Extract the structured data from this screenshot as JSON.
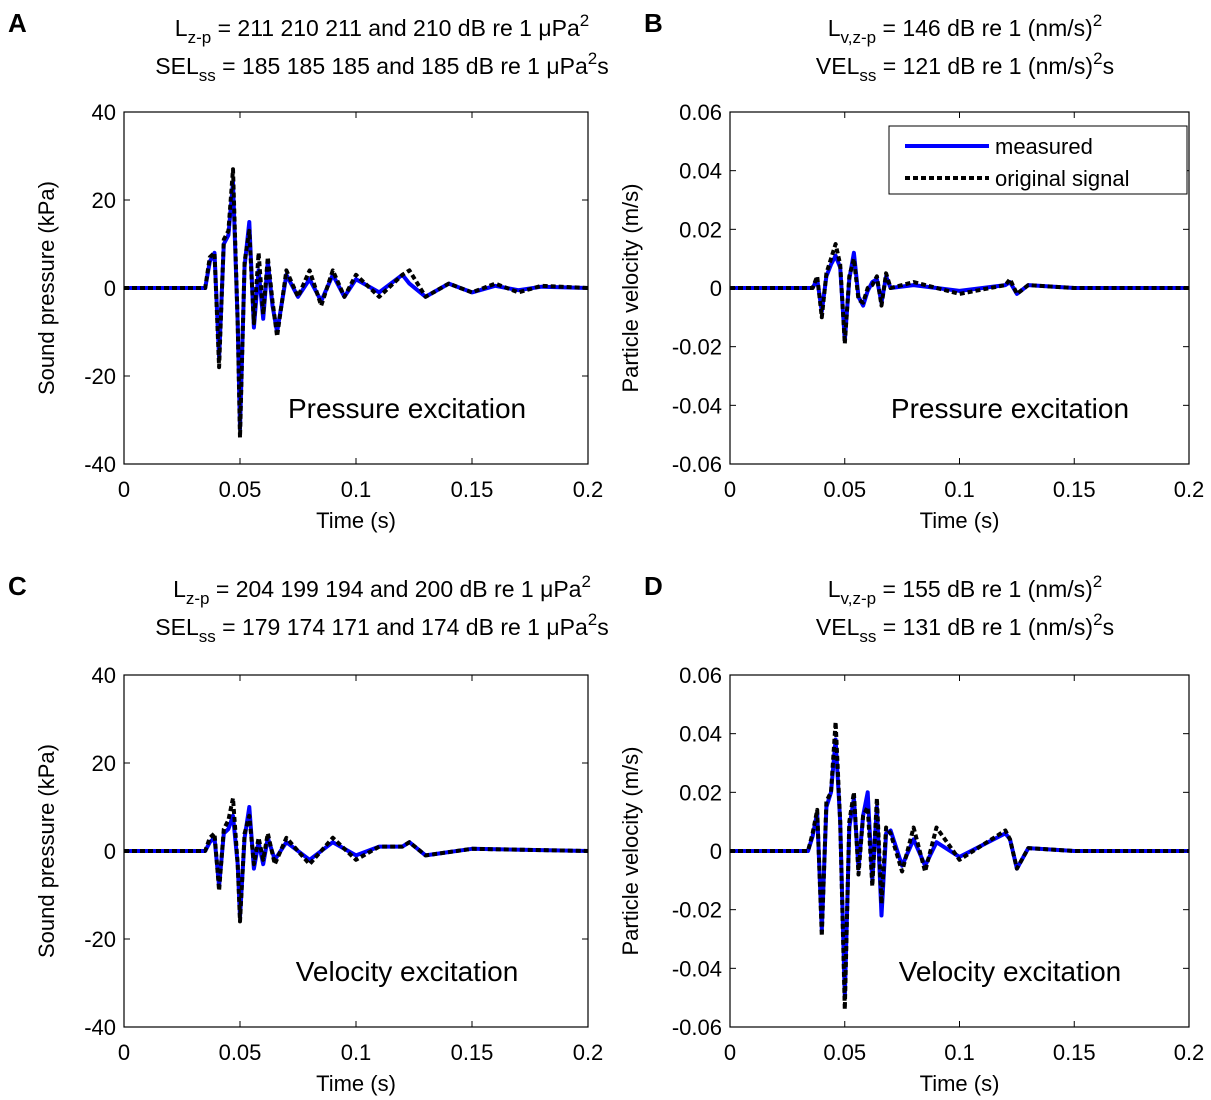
{
  "chart_data": [
    {
      "panel": "A",
      "type": "line",
      "title": {
        "line1": {
          "main": "L",
          "sub": "z-p",
          "text": " = 211  210  211 and 210 dB re 1 μPa",
          "sup": "2",
          "tail": ""
        },
        "line2": {
          "main": "SEL",
          "sub": "ss",
          "text": " = 185  185  185 and 185 dB re 1 μPa",
          "sup": "2",
          "tail": "s"
        }
      },
      "xlabel": "Time (s)",
      "ylabel": "Sound pressure (kPa)",
      "xlim": [
        0,
        0.2
      ],
      "ylim": [
        -40,
        40
      ],
      "xticks": [
        0,
        0.05,
        0.1,
        0.15,
        0.2
      ],
      "xtick_labels": [
        "0",
        "0.05",
        "0.1",
        "0.15",
        "0.2"
      ],
      "yticks": [
        -40,
        -20,
        0,
        20,
        40
      ],
      "ytick_labels": [
        "-40",
        "-20",
        "0",
        "20",
        "40"
      ],
      "annotation": "Pressure excitation",
      "series": [
        {
          "name": "measured",
          "color": "#0000ff",
          "style": "solid",
          "x": [
            0,
            0.035,
            0.037,
            0.039,
            0.041,
            0.043,
            0.045,
            0.047,
            0.049,
            0.05,
            0.052,
            0.054,
            0.056,
            0.058,
            0.06,
            0.062,
            0.064,
            0.066,
            0.07,
            0.075,
            0.08,
            0.085,
            0.09,
            0.095,
            0.1,
            0.11,
            0.12,
            0.123,
            0.13,
            0.14,
            0.15,
            0.16,
            0.17,
            0.18,
            0.2
          ],
          "y": [
            0,
            0,
            6,
            8,
            -16,
            10,
            12,
            24,
            -8,
            -32,
            5,
            15,
            -9,
            4,
            -7,
            6,
            -4,
            -10,
            3,
            -2,
            2,
            -3,
            3,
            -2,
            2,
            -1,
            3,
            1,
            -2,
            1,
            -1,
            0.5,
            -0.5,
            0.3,
            0
          ]
        },
        {
          "name": "original signal",
          "color": "#000000",
          "style": "dashed",
          "x": [
            0,
            0.035,
            0.037,
            0.039,
            0.041,
            0.043,
            0.045,
            0.047,
            0.049,
            0.05,
            0.052,
            0.054,
            0.056,
            0.058,
            0.06,
            0.062,
            0.064,
            0.066,
            0.07,
            0.075,
            0.08,
            0.085,
            0.09,
            0.095,
            0.1,
            0.11,
            0.12,
            0.123,
            0.13,
            0.14,
            0.15,
            0.16,
            0.17,
            0.18,
            0.2
          ],
          "y": [
            0,
            0,
            7,
            8,
            -18,
            11,
            13,
            27,
            -8,
            -34,
            6,
            13,
            -8,
            8,
            -6,
            7,
            -3,
            -11,
            4,
            -2,
            4,
            -4,
            4,
            -2,
            3,
            -2,
            3,
            4,
            -2,
            1,
            -1,
            1,
            -1,
            0.5,
            0
          ]
        }
      ]
    },
    {
      "panel": "B",
      "type": "line",
      "title": {
        "line1": {
          "main": "L",
          "sub": "v,z-p",
          "text": " = 146 dB re 1 (nm/s)",
          "sup": "2",
          "tail": ""
        },
        "line2": {
          "main": "VEL",
          "sub": "ss",
          "text": " = 121 dB re 1 (nm/s)",
          "sup": "2",
          "tail": "s"
        }
      },
      "xlabel": "Time (s)",
      "ylabel": "Particle velocity (m/s)",
      "xlim": [
        0,
        0.2
      ],
      "ylim": [
        -0.06,
        0.06
      ],
      "xticks": [
        0,
        0.05,
        0.1,
        0.15,
        0.2
      ],
      "xtick_labels": [
        "0",
        "0.05",
        "0.1",
        "0.15",
        "0.2"
      ],
      "yticks": [
        -0.06,
        -0.04,
        -0.02,
        0,
        0.02,
        0.04,
        0.06
      ],
      "ytick_labels": [
        "-0.06",
        "-0.04",
        "-0.02",
        "0",
        "0.02",
        "0.04",
        "0.06"
      ],
      "annotation": "Pressure excitation",
      "legend": {
        "position": "top-right",
        "entries": [
          "measured",
          "original signal"
        ]
      },
      "series": [
        {
          "name": "measured",
          "color": "#0000ff",
          "style": "solid",
          "x": [
            0,
            0.036,
            0.038,
            0.04,
            0.042,
            0.044,
            0.046,
            0.048,
            0.05,
            0.052,
            0.054,
            0.056,
            0.058,
            0.06,
            0.062,
            0.064,
            0.066,
            0.068,
            0.07,
            0.08,
            0.1,
            0.12,
            0.122,
            0.125,
            0.13,
            0.15,
            0.2
          ],
          "y": [
            0,
            0,
            0.003,
            -0.008,
            0.004,
            0.008,
            0.011,
            0.007,
            -0.018,
            0.003,
            0.012,
            -0.003,
            -0.006,
            -0.001,
            0.002,
            0.003,
            -0.005,
            0.004,
            0,
            0.001,
            -0.001,
            0.001,
            0.002,
            -0.002,
            0.001,
            0,
            0
          ]
        },
        {
          "name": "original signal",
          "color": "#000000",
          "style": "dashed",
          "x": [
            0,
            0.036,
            0.038,
            0.04,
            0.042,
            0.044,
            0.046,
            0.048,
            0.05,
            0.052,
            0.054,
            0.056,
            0.058,
            0.06,
            0.062,
            0.064,
            0.066,
            0.068,
            0.07,
            0.08,
            0.1,
            0.12,
            0.122,
            0.125,
            0.13,
            0.15,
            0.2
          ],
          "y": [
            0,
            0,
            0.004,
            -0.01,
            0.005,
            0.01,
            0.015,
            0.008,
            -0.019,
            0.004,
            0.01,
            -0.004,
            -0.005,
            0,
            0.001,
            0.004,
            -0.006,
            0.005,
            0,
            0.002,
            -0.002,
            0.001,
            0.003,
            -0.002,
            0.001,
            0,
            0
          ]
        }
      ]
    },
    {
      "panel": "C",
      "type": "line",
      "title": {
        "line1": {
          "main": "L",
          "sub": "z-p",
          "text": " = 204  199  194 and 200 dB re 1 μPa",
          "sup": "2",
          "tail": ""
        },
        "line2": {
          "main": "SEL",
          "sub": "ss",
          "text": " = 179  174  171 and 174 dB re 1 μPa",
          "sup": "2",
          "tail": "s"
        }
      },
      "xlabel": "Time (s)",
      "ylabel": "Sound pressure (kPa)",
      "xlim": [
        0,
        0.2
      ],
      "ylim": [
        -40,
        40
      ],
      "xticks": [
        0,
        0.05,
        0.1,
        0.15,
        0.2
      ],
      "xtick_labels": [
        "0",
        "0.05",
        "0.1",
        "0.15",
        "0.2"
      ],
      "yticks": [
        -40,
        -20,
        0,
        20,
        40
      ],
      "ytick_labels": [
        "-40",
        "-20",
        "0",
        "20",
        "40"
      ],
      "annotation": "Velocity excitation",
      "series": [
        {
          "name": "measured",
          "color": "#0000ff",
          "style": "solid",
          "x": [
            0,
            0.035,
            0.037,
            0.039,
            0.041,
            0.043,
            0.045,
            0.047,
            0.049,
            0.05,
            0.052,
            0.054,
            0.056,
            0.058,
            0.06,
            0.062,
            0.065,
            0.07,
            0.08,
            0.09,
            0.1,
            0.11,
            0.12,
            0.123,
            0.13,
            0.15,
            0.2
          ],
          "y": [
            0,
            0,
            2,
            3,
            -8,
            4,
            5,
            8,
            -3,
            -15,
            3,
            10,
            -4,
            2,
            -3,
            3,
            -2,
            2,
            -2,
            2,
            -1,
            1,
            1,
            2,
            -1,
            0.5,
            0
          ]
        },
        {
          "name": "original signal",
          "color": "#000000",
          "style": "dashed",
          "x": [
            0,
            0.035,
            0.037,
            0.039,
            0.041,
            0.043,
            0.045,
            0.047,
            0.049,
            0.05,
            0.052,
            0.054,
            0.056,
            0.058,
            0.06,
            0.062,
            0.065,
            0.07,
            0.08,
            0.09,
            0.1,
            0.11,
            0.12,
            0.123,
            0.13,
            0.15,
            0.2
          ],
          "y": [
            0,
            0,
            3,
            4,
            -9,
            5,
            7,
            12,
            -3,
            -16,
            4,
            8,
            -3,
            3,
            -2,
            4,
            -3,
            3,
            -3,
            3,
            -2,
            1,
            1,
            2,
            -1,
            0.5,
            0
          ]
        }
      ]
    },
    {
      "panel": "D",
      "type": "line",
      "title": {
        "line1": {
          "main": "L",
          "sub": "v,z-p",
          "text": " = 155 dB re 1 (nm/s)",
          "sup": "2",
          "tail": ""
        },
        "line2": {
          "main": "VEL",
          "sub": "ss",
          "text": " = 131 dB re 1 (nm/s)",
          "sup": "2",
          "tail": "s"
        }
      },
      "xlabel": "Time (s)",
      "ylabel": "Particle velocity (m/s)",
      "xlim": [
        0,
        0.2
      ],
      "ylim": [
        -0.06,
        0.06
      ],
      "xticks": [
        0,
        0.05,
        0.1,
        0.15,
        0.2
      ],
      "xtick_labels": [
        "0",
        "0.05",
        "0.1",
        "0.15",
        "0.2"
      ],
      "yticks": [
        -0.06,
        -0.04,
        -0.02,
        0,
        0.02,
        0.04,
        0.06
      ],
      "ytick_labels": [
        "-0.06",
        "-0.04",
        "-0.02",
        "0",
        "0.02",
        "0.04",
        "0.06"
      ],
      "annotation": "Velocity excitation",
      "series": [
        {
          "name": "measured",
          "color": "#0000ff",
          "style": "solid",
          "x": [
            0,
            0.034,
            0.036,
            0.038,
            0.04,
            0.042,
            0.044,
            0.046,
            0.048,
            0.05,
            0.052,
            0.054,
            0.056,
            0.058,
            0.06,
            0.062,
            0.064,
            0.066,
            0.068,
            0.07,
            0.075,
            0.08,
            0.085,
            0.09,
            0.1,
            0.11,
            0.12,
            0.122,
            0.125,
            0.13,
            0.15,
            0.2
          ],
          "y": [
            0,
            0,
            0.005,
            0.013,
            -0.027,
            0.015,
            0.02,
            0.038,
            0.01,
            -0.05,
            0.008,
            0.018,
            -0.006,
            0.012,
            0.02,
            -0.01,
            0.015,
            -0.022,
            0.006,
            0.007,
            -0.005,
            0.004,
            -0.005,
            0.003,
            -0.002,
            0.002,
            0.006,
            0.004,
            -0.006,
            0.001,
            0,
            0
          ]
        },
        {
          "name": "original signal",
          "color": "#000000",
          "style": "dashed",
          "x": [
            0,
            0.034,
            0.036,
            0.038,
            0.04,
            0.042,
            0.044,
            0.046,
            0.048,
            0.05,
            0.052,
            0.054,
            0.056,
            0.058,
            0.06,
            0.062,
            0.064,
            0.066,
            0.068,
            0.07,
            0.075,
            0.08,
            0.085,
            0.09,
            0.1,
            0.11,
            0.12,
            0.122,
            0.125,
            0.13,
            0.15,
            0.2
          ],
          "y": [
            0,
            0,
            0.006,
            0.014,
            -0.029,
            0.017,
            0.02,
            0.044,
            0.01,
            -0.054,
            0.01,
            0.02,
            -0.008,
            0.012,
            0.015,
            -0.012,
            0.018,
            -0.018,
            0.008,
            0.006,
            -0.007,
            0.008,
            -0.007,
            0.008,
            -0.003,
            0.002,
            0.007,
            0.004,
            -0.006,
            0.001,
            0,
            0
          ]
        }
      ]
    }
  ]
}
